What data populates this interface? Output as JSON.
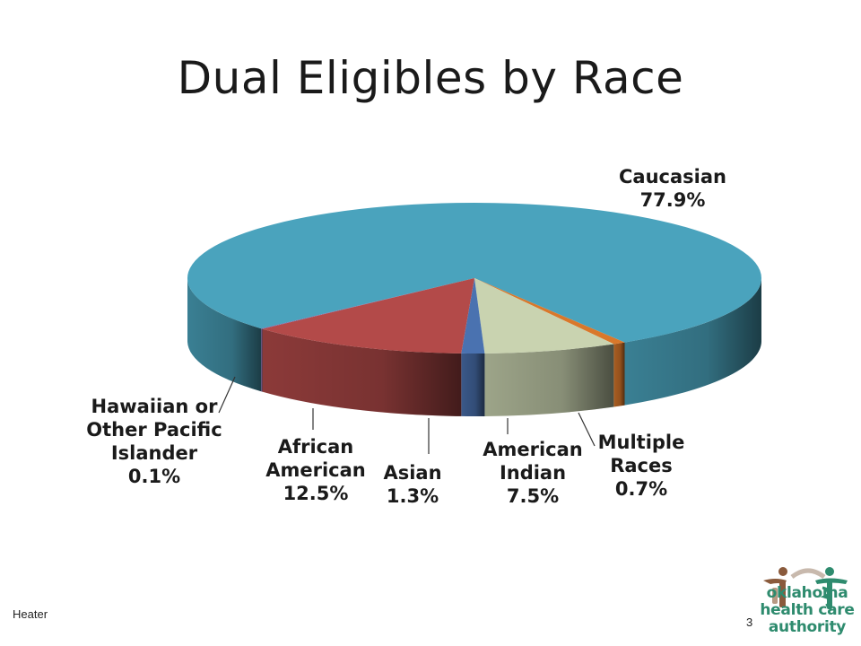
{
  "slide": {
    "title": "Dual Eligibles by Race",
    "footer_left": "Heater",
    "page_number": "3",
    "logo": {
      "lines": [
        "oklahoma",
        "health care",
        "authority"
      ]
    }
  },
  "colors": {
    "caucasian": "#4aa3bd",
    "african_american": "#b34a49",
    "asian": "#4a72b0",
    "american_indian": "#c9d3b0",
    "multiple_races": "#d9782b",
    "hawaiian": "#7a5fa0",
    "logo_green": "#2e8b6e",
    "logo_brown": "#8a5a3c"
  },
  "chart_data": {
    "type": "pie",
    "style": "3d",
    "title": "Dual Eligibles by Race",
    "slices": [
      {
        "label_lines": [
          "Caucasian"
        ],
        "value": 77.9,
        "value_text": "77.9%",
        "color": "#4aa3bd"
      },
      {
        "label_lines": [
          "Multiple",
          "Races"
        ],
        "value": 0.7,
        "value_text": "0.7%",
        "color": "#d9782b"
      },
      {
        "label_lines": [
          "American",
          "Indian"
        ],
        "value": 7.5,
        "value_text": "7.5%",
        "color": "#c9d3b0"
      },
      {
        "label_lines": [
          "Asian"
        ],
        "value": 1.3,
        "value_text": "1.3%",
        "color": "#4a72b0"
      },
      {
        "label_lines": [
          "African",
          "American"
        ],
        "value": 12.5,
        "value_text": "12.5%",
        "color": "#b34a49"
      },
      {
        "label_lines": [
          "Hawaiian or",
          "Other Pacific",
          "Islander"
        ],
        "value": 0.1,
        "value_text": "0.1%",
        "color": "#7a5fa0"
      }
    ]
  }
}
